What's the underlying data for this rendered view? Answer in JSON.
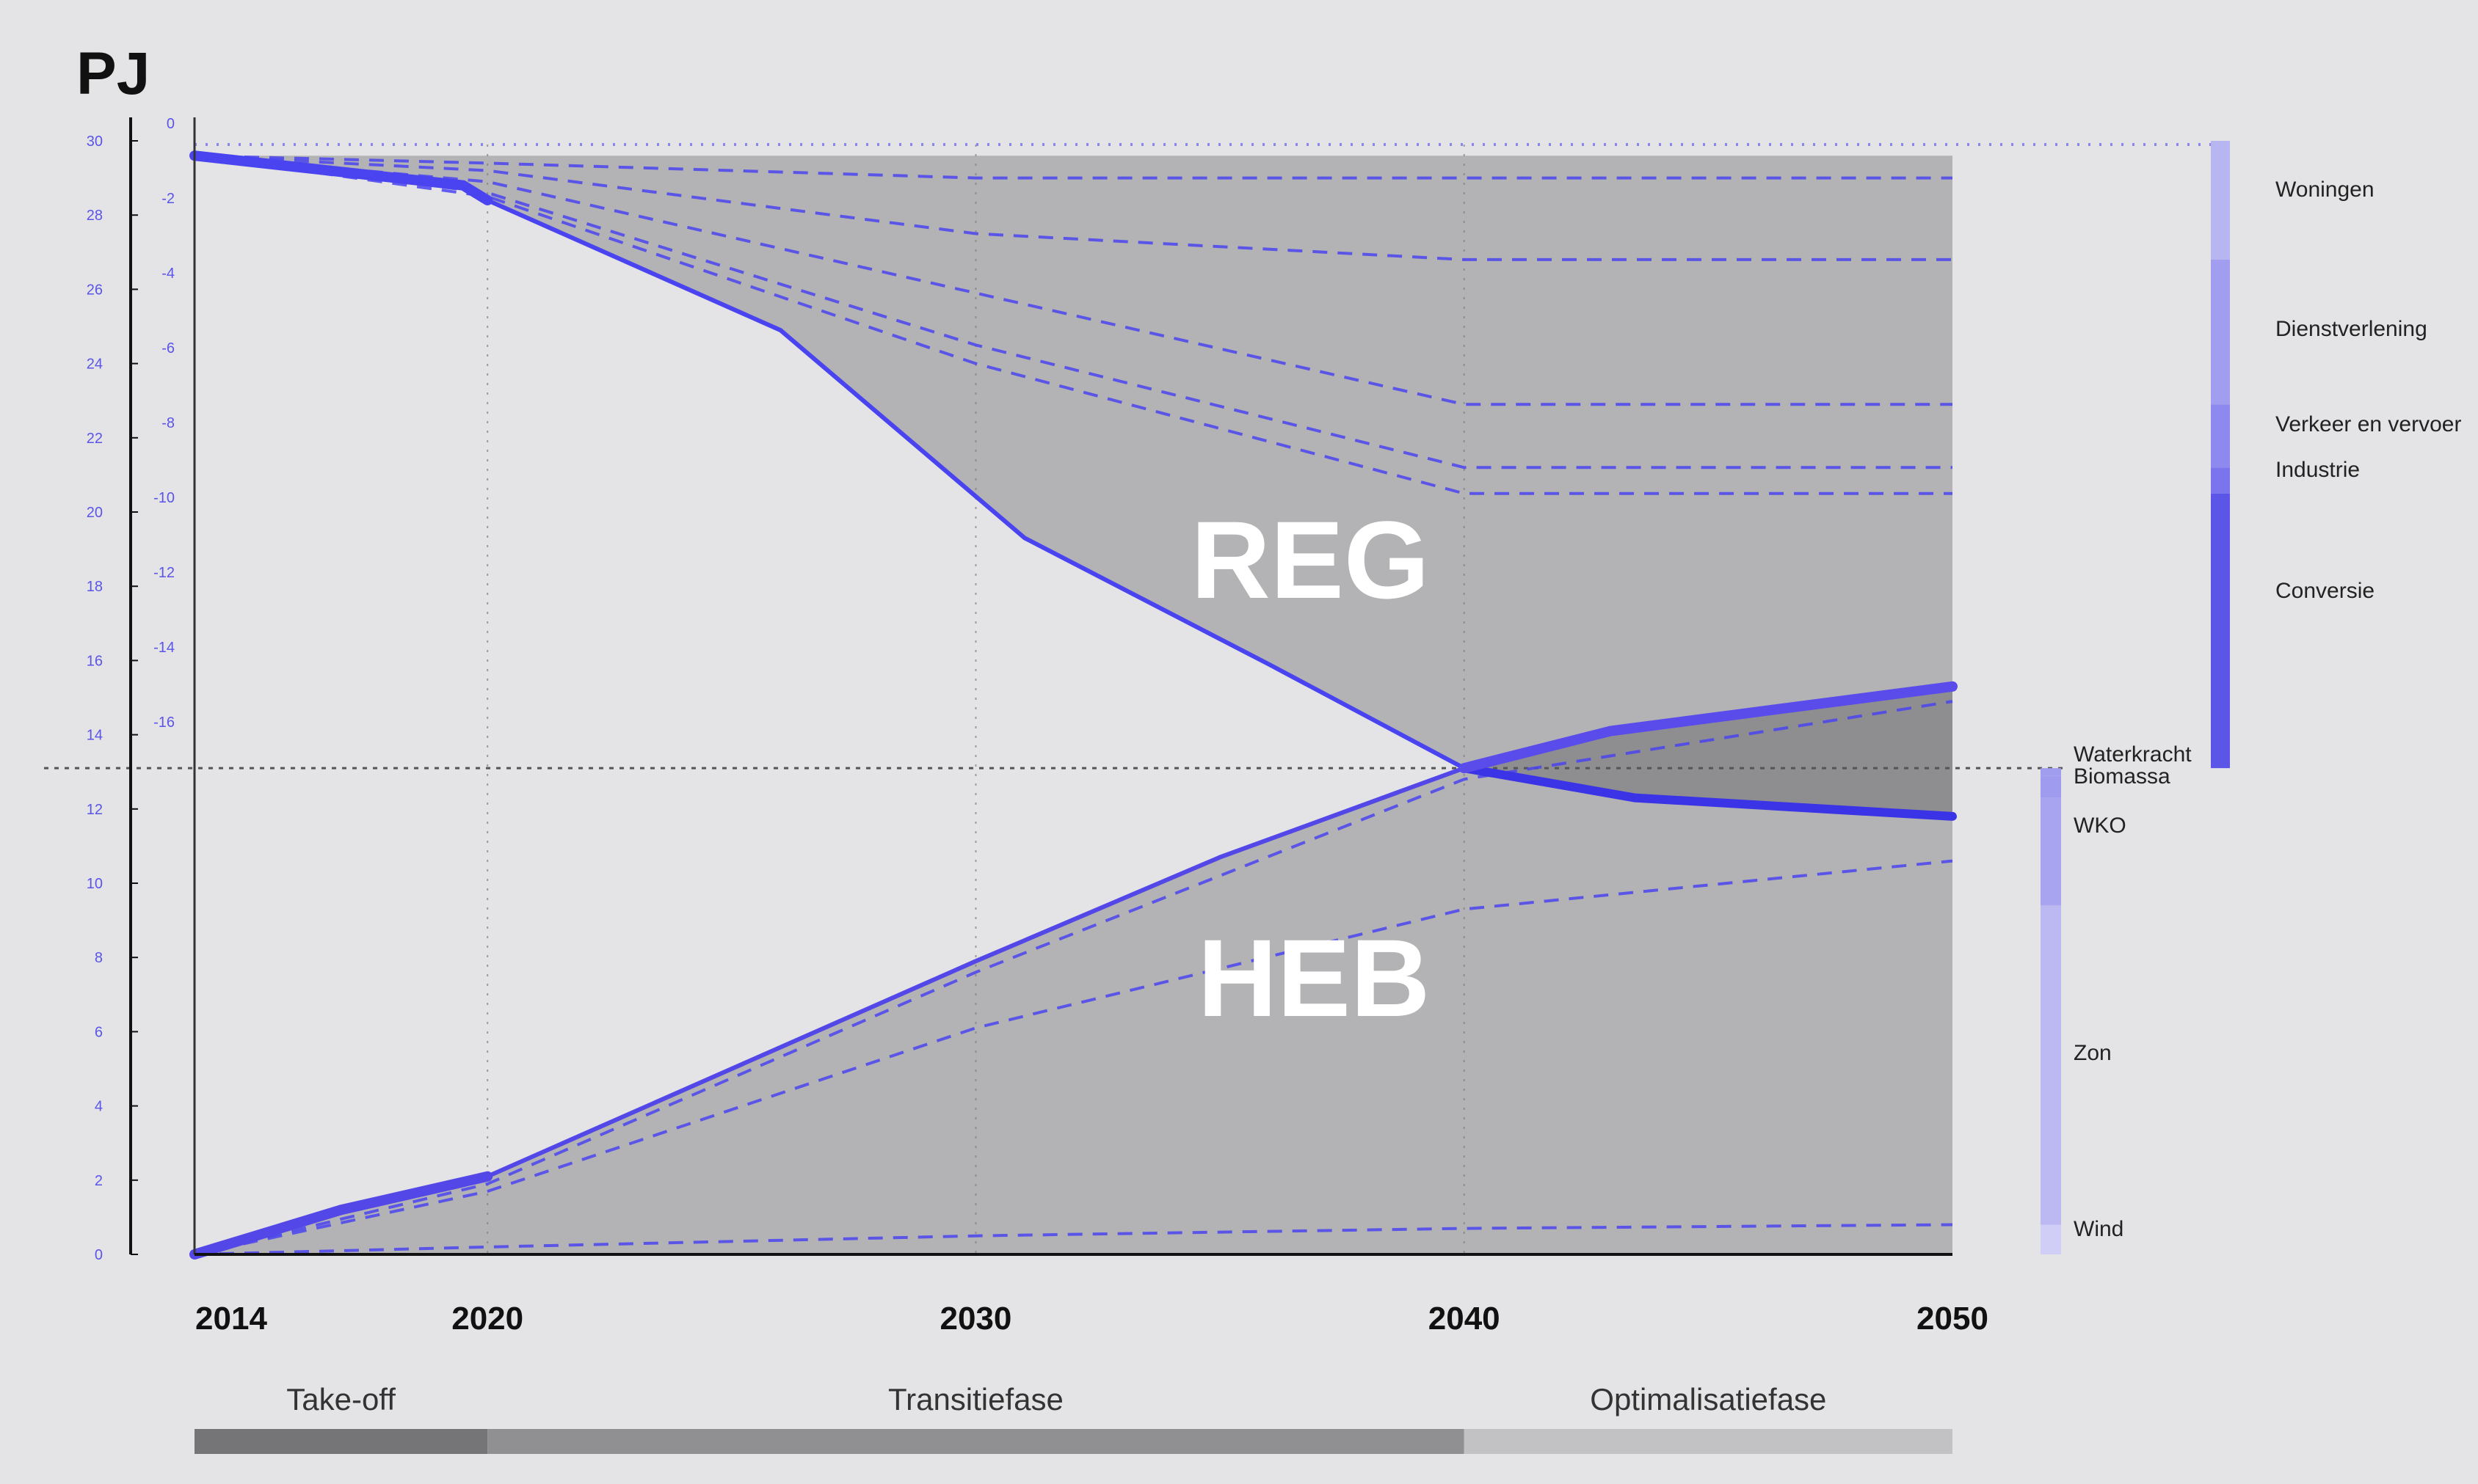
{
  "chart_data": {
    "type": "area",
    "unit": "PJ",
    "x": [
      2014,
      2020,
      2030,
      2040,
      2050
    ],
    "xticks": [
      "2014",
      "2020",
      "2030",
      "2040",
      "2050"
    ],
    "yaxis_outer": {
      "ticks": [
        "30",
        "28",
        "26",
        "24",
        "22",
        "20",
        "18",
        "16",
        "14",
        "12",
        "10",
        "8",
        "6",
        "4",
        "2",
        "0"
      ],
      "range": [
        0,
        30
      ]
    },
    "yaxis_inner": {
      "ticks": [
        "0",
        "-2",
        "-4",
        "-6",
        "-8",
        "-10",
        "-12",
        "-14",
        "-16"
      ],
      "range": [
        -16,
        0
      ]
    },
    "reg_label": "REG",
    "heb_label": "HEB",
    "reg_series": {
      "total": {
        "x": [
          2014,
          2019.5,
          2020,
          2026,
          2031,
          2036,
          2040
        ],
        "y": [
          29.6,
          28.8,
          28.4,
          24.9,
          19.3,
          15.9,
          13.1
        ]
      },
      "lines": [
        {
          "x": [
            2014,
            2020,
            2030,
            2040,
            2050
          ],
          "y": [
            29.6,
            29.4,
            29.0,
            29.0,
            29.0
          ]
        },
        {
          "x": [
            2014,
            2020,
            2030,
            2040,
            2050
          ],
          "y": [
            29.6,
            29.2,
            27.5,
            26.8,
            26.8
          ]
        },
        {
          "x": [
            2014,
            2020,
            2030,
            2040,
            2050
          ],
          "y": [
            29.6,
            28.9,
            25.9,
            22.9,
            22.9
          ]
        },
        {
          "x": [
            2014,
            2020,
            2030,
            2040,
            2050
          ],
          "y": [
            29.6,
            28.6,
            24.5,
            21.2,
            21.2
          ]
        },
        {
          "x": [
            2014,
            2020,
            2030,
            2040,
            2050
          ],
          "y": [
            29.6,
            28.5,
            24.0,
            20.5,
            20.5
          ]
        }
      ],
      "after_2040": {
        "x": [
          2040,
          2043.5,
          2050
        ],
        "y": [
          13.1,
          12.3,
          11.8
        ]
      }
    },
    "heb_series": {
      "total": {
        "x": [
          2014,
          2017,
          2020,
          2025,
          2030,
          2035,
          2040,
          2043,
          2050
        ],
        "y": [
          0.0,
          1.2,
          2.1,
          5.0,
          7.9,
          10.7,
          13.1,
          14.1,
          15.3
        ]
      },
      "lines": [
        {
          "x": [
            2014,
            2020,
            2030,
            2040,
            2050
          ],
          "y": [
            0.0,
            0.2,
            0.5,
            0.7,
            0.8
          ]
        },
        {
          "x": [
            2014,
            2020,
            2030,
            2040,
            2050
          ],
          "y": [
            0.0,
            1.7,
            6.1,
            9.3,
            10.6
          ]
        },
        {
          "x": [
            2014,
            2020,
            2030,
            2040,
            2050
          ],
          "y": [
            0.0,
            1.9,
            7.6,
            12.8,
            14.9
          ]
        }
      ]
    },
    "crossover": {
      "x": 2040,
      "y": 13.1
    },
    "phases": [
      {
        "label": "Take-off",
        "from": 2014,
        "to": 2020,
        "color": "#757578"
      },
      {
        "label": "Transitiefase",
        "from": 2020,
        "to": 2040,
        "color": "#909092"
      },
      {
        "label": "Optimalisatiefase",
        "from": 2040,
        "to": 2050,
        "color": "#c2c2c4"
      }
    ],
    "legend_reg": [
      {
        "label": "Woningen",
        "from": 30.0,
        "to": 26.8,
        "color": "#b8b6f0"
      },
      {
        "label": "Dienstverlening",
        "from": 26.8,
        "to": 22.9,
        "color": "#a19ef0"
      },
      {
        "label": "Verkeer en vervoer",
        "from": 22.9,
        "to": 21.2,
        "color": "#8d89ee"
      },
      {
        "label": "Industrie",
        "from": 21.2,
        "to": 20.5,
        "color": "#7a75ec"
      },
      {
        "label": "Conversie",
        "from": 20.5,
        "to": 13.1,
        "color": "#5b55e8"
      }
    ],
    "legend_heb": [
      {
        "label": "Waterkracht",
        "from": 13.1,
        "to": 12.9,
        "color": "#a09cee"
      },
      {
        "label": "Biomassa",
        "from": 12.9,
        "to": 12.3,
        "color": "#9f9bef"
      },
      {
        "label": "WKO",
        "from": 12.3,
        "to": 9.4,
        "color": "#a8a4ef"
      },
      {
        "label": "Zon",
        "from": 9.4,
        "to": 0.8,
        "color": "#bcb8f2"
      },
      {
        "label": "Wind",
        "from": 0.8,
        "to": 0.0,
        "color": "#d0cdf6"
      }
    ]
  },
  "colors": {
    "line": "#4a44f0",
    "line_bold": "#5447e8",
    "area": "#b3b3b5",
    "area_dark": "#8e8e90",
    "guide": "#7d7d80"
  }
}
